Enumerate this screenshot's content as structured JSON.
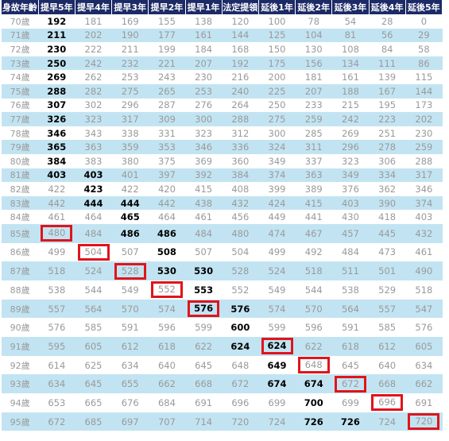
{
  "table": {
    "header": [
      "身故年齡",
      "提早5年",
      "提早4年",
      "提早3年",
      "提早2年",
      "提早1年",
      "法定提領",
      "延後1年",
      "延後2年",
      "延後3年",
      "延後4年",
      "延後5年"
    ],
    "rows": [
      [
        "70歲",
        192,
        181,
        169,
        155,
        138,
        120,
        100,
        78,
        54,
        28,
        0
      ],
      [
        "71歲",
        211,
        202,
        190,
        177,
        161,
        144,
        125,
        104,
        81,
        56,
        29
      ],
      [
        "72歲",
        230,
        222,
        211,
        199,
        184,
        168,
        150,
        130,
        108,
        84,
        58
      ],
      [
        "73歲",
        250,
        242,
        232,
        221,
        207,
        192,
        175,
        156,
        134,
        111,
        86
      ],
      [
        "74歲",
        269,
        262,
        253,
        243,
        230,
        216,
        200,
        181,
        161,
        139,
        115
      ],
      [
        "75歲",
        288,
        282,
        275,
        265,
        253,
        240,
        225,
        207,
        188,
        167,
        144
      ],
      [
        "76歲",
        307,
        302,
        296,
        287,
        276,
        264,
        250,
        233,
        215,
        195,
        173
      ],
      [
        "77歲",
        326,
        323,
        317,
        309,
        300,
        288,
        275,
        259,
        242,
        223,
        202
      ],
      [
        "78歲",
        346,
        343,
        338,
        331,
        323,
        312,
        300,
        285,
        269,
        251,
        230
      ],
      [
        "79歲",
        365,
        363,
        359,
        353,
        346,
        336,
        324,
        311,
        296,
        278,
        259
      ],
      [
        "80歲",
        384,
        383,
        380,
        375,
        369,
        360,
        349,
        337,
        323,
        306,
        288
      ],
      [
        "81歲",
        403,
        403,
        401,
        397,
        392,
        384,
        374,
        363,
        349,
        334,
        317
      ],
      [
        "82歲",
        422,
        423,
        422,
        420,
        415,
        408,
        399,
        389,
        376,
        362,
        346
      ],
      [
        "83歲",
        442,
        444,
        444,
        442,
        438,
        432,
        424,
        415,
        403,
        390,
        374
      ],
      [
        "84歲",
        461,
        464,
        465,
        464,
        461,
        456,
        449,
        441,
        430,
        418,
        403
      ],
      [
        "85歲",
        480,
        484,
        486,
        486,
        484,
        480,
        474,
        467,
        457,
        445,
        432
      ],
      [
        "86歲",
        499,
        504,
        507,
        508,
        507,
        504,
        499,
        492,
        484,
        473,
        461
      ],
      [
        "87歲",
        518,
        524,
        528,
        530,
        530,
        528,
        524,
        518,
        511,
        501,
        490
      ],
      [
        "88歲",
        538,
        544,
        549,
        552,
        553,
        552,
        549,
        544,
        538,
        529,
        518
      ],
      [
        "89歲",
        557,
        564,
        570,
        574,
        576,
        576,
        574,
        570,
        564,
        557,
        547
      ],
      [
        "90歲",
        576,
        585,
        591,
        596,
        599,
        600,
        599,
        596,
        591,
        585,
        576
      ],
      [
        "91歲",
        595,
        605,
        612,
        618,
        622,
        624,
        624,
        622,
        618,
        612,
        605
      ],
      [
        "92歲",
        614,
        625,
        634,
        640,
        645,
        648,
        649,
        648,
        645,
        640,
        634
      ],
      [
        "93歲",
        634,
        645,
        655,
        662,
        668,
        672,
        674,
        674,
        672,
        668,
        662
      ],
      [
        "94歲",
        653,
        665,
        676,
        684,
        691,
        696,
        699,
        700,
        699,
        696,
        691
      ],
      [
        "95歲",
        672,
        685,
        697,
        707,
        714,
        720,
        724,
        726,
        726,
        724,
        720
      ]
    ]
  }
}
